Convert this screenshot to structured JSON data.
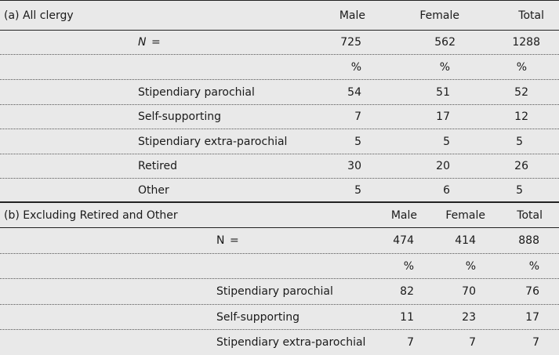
{
  "table": {
    "section_a": {
      "title": "(a) All clergy",
      "headers": [
        "Male",
        "Female",
        "Total"
      ],
      "n_label": "N",
      "n_eq": "=",
      "n_values": [
        "725",
        "562",
        "1288"
      ],
      "pct": [
        "%",
        "%",
        "%"
      ],
      "rows": [
        {
          "label": "Stipendiary parochial",
          "values": [
            "54",
            "51",
            "52"
          ]
        },
        {
          "label": "Self-supporting",
          "values": [
            "7",
            "17",
            "12"
          ]
        },
        {
          "label": "Stipendiary extra-parochial",
          "values": [
            "5",
            "5",
            "5"
          ]
        },
        {
          "label": "Retired",
          "values": [
            "30",
            "20",
            "26"
          ]
        },
        {
          "label": "Other",
          "values": [
            "5",
            "6",
            "5"
          ]
        }
      ]
    },
    "section_b": {
      "title": "(b) Excluding Retired and Other",
      "headers": [
        "Male",
        "Female",
        "Total"
      ],
      "n_label": "N",
      "n_eq": "=",
      "n_values": [
        "474",
        "414",
        "888"
      ],
      "pct": [
        "%",
        "%",
        "%"
      ],
      "rows": [
        {
          "label": "Stipendiary parochial",
          "values": [
            "82",
            "70",
            "76"
          ]
        },
        {
          "label": "Self-supporting",
          "values": [
            "11",
            "23",
            "17"
          ]
        },
        {
          "label": "Stipendiary extra-parochial",
          "values": [
            "7",
            "7",
            "7"
          ]
        }
      ]
    }
  }
}
